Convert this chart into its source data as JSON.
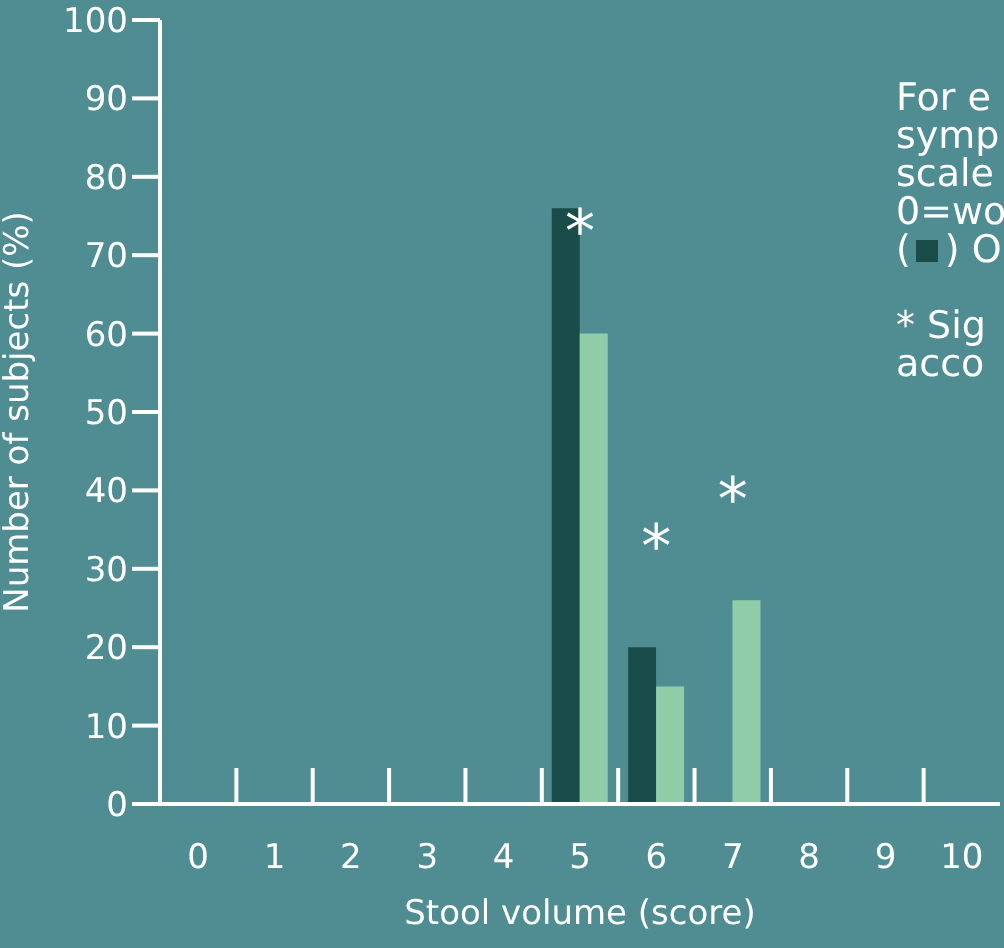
{
  "chart_data": {
    "type": "bar",
    "xlabel": "Stool volume (score)",
    "ylabel": "Number of subjects (%)",
    "categories": [
      "0",
      "1",
      "2",
      "3",
      "4",
      "5",
      "6",
      "7",
      "8",
      "9",
      "10"
    ],
    "series": [
      {
        "color": "#1a4d4a",
        "values": [
          null,
          null,
          null,
          null,
          null,
          76,
          20,
          null,
          null,
          null,
          null
        ]
      },
      {
        "color": "#8ecda8",
        "values": [
          null,
          null,
          null,
          null,
          null,
          60,
          15,
          26,
          null,
          null,
          null
        ]
      }
    ],
    "ylim": [
      0,
      100
    ],
    "yticks": [
      0,
      10,
      20,
      30,
      40,
      50,
      60,
      70,
      80,
      90,
      100
    ],
    "grid": false,
    "legend": false,
    "annotations": [
      {
        "text": "*",
        "x": "5",
        "y": 76
      },
      {
        "text": "*",
        "x": "6",
        "y": 20
      },
      {
        "text": "*",
        "x": "7",
        "y": 26
      },
      "For e",
      "symp",
      "scale",
      "0=wo",
      "( ) O",
      "* Sig",
      "acco"
    ]
  }
}
